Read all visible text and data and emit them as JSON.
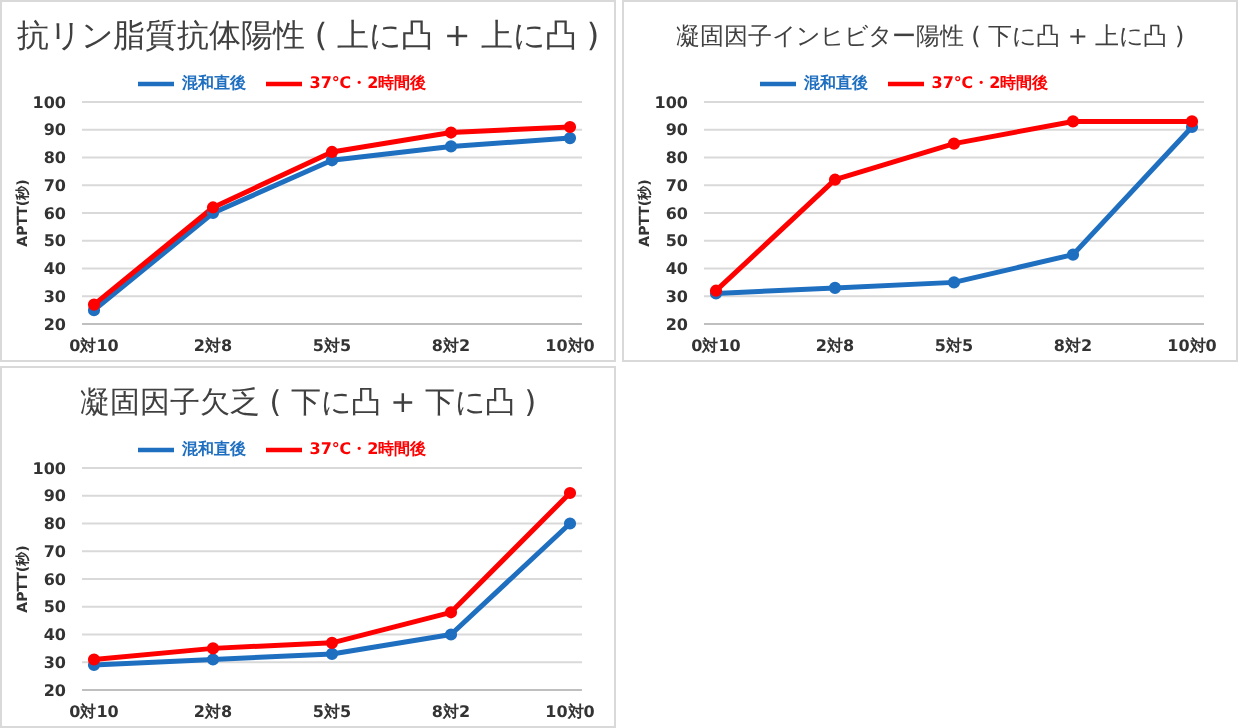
{
  "chart_data": [
    {
      "type": "line",
      "title": "抗リン脂質抗体陽性 ( 上に凸 + 上に凸 )",
      "ylabel": "APTT(秒)",
      "categories": [
        "0対10",
        "2対8",
        "5対5",
        "8対2",
        "10対0"
      ],
      "ylim": [
        20,
        100
      ],
      "yticks": [
        20,
        30,
        40,
        50,
        60,
        70,
        80,
        90,
        100
      ],
      "grid": "y",
      "legend": "top",
      "marker": "circle",
      "series": [
        {
          "name": "混和直後",
          "color": "#1f6fc0",
          "values": [
            25,
            60,
            79,
            84,
            87
          ]
        },
        {
          "name": "37℃・2時間後",
          "color": "#ff0000",
          "values": [
            27,
            62,
            82,
            89,
            91
          ]
        }
      ]
    },
    {
      "type": "line",
      "title": "凝固因子インヒビター陽性 ( 下に凸 + 上に凸 )",
      "ylabel": "APTT(秒)",
      "categories": [
        "0対10",
        "2対8",
        "5対5",
        "8対2",
        "10対0"
      ],
      "ylim": [
        20,
        100
      ],
      "yticks": [
        20,
        30,
        40,
        50,
        60,
        70,
        80,
        90,
        100
      ],
      "grid": "y",
      "legend": "top",
      "marker": "circle",
      "series": [
        {
          "name": "混和直後",
          "color": "#1f6fc0",
          "values": [
            31,
            33,
            35,
            45,
            91
          ]
        },
        {
          "name": "37℃・2時間後",
          "color": "#ff0000",
          "values": [
            32,
            72,
            85,
            93,
            93
          ]
        }
      ]
    },
    {
      "type": "line",
      "title": "凝固因子欠乏 ( 下に凸 + 下に凸 )",
      "ylabel": "APTT(秒)",
      "categories": [
        "0対10",
        "2対8",
        "5対5",
        "8対2",
        "10対0"
      ],
      "ylim": [
        20,
        100
      ],
      "yticks": [
        20,
        30,
        40,
        50,
        60,
        70,
        80,
        90,
        100
      ],
      "grid": "y",
      "legend": "top",
      "marker": "circle",
      "series": [
        {
          "name": "混和直後",
          "color": "#1f6fc0",
          "values": [
            29,
            31,
            33,
            40,
            80
          ]
        },
        {
          "name": "37℃・2時間後",
          "color": "#ff0000",
          "values": [
            31,
            35,
            37,
            48,
            91
          ]
        }
      ]
    }
  ]
}
